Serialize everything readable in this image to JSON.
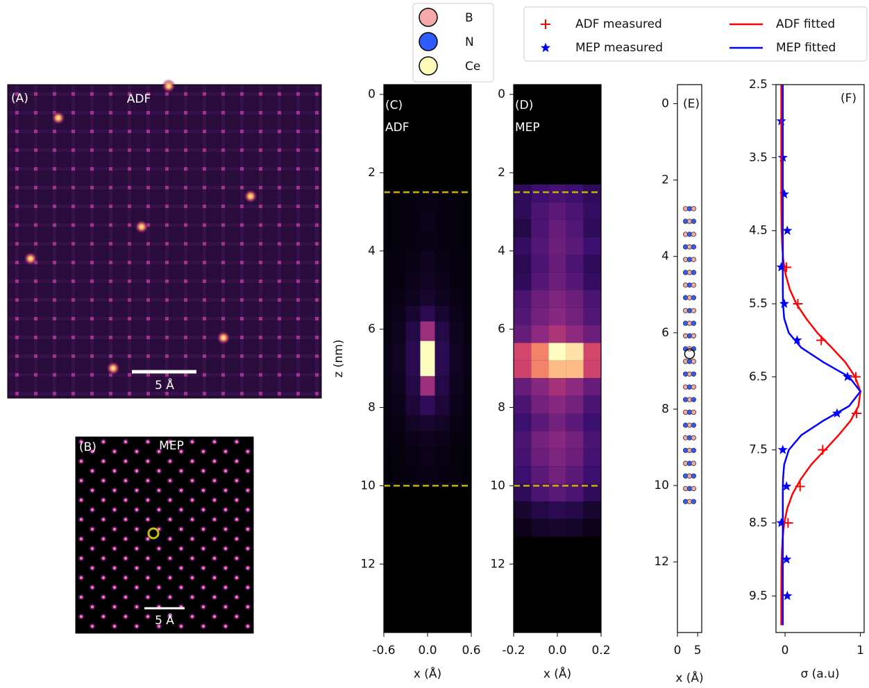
{
  "chart_data": [
    {
      "type": "image",
      "panel_label": "(A)",
      "title": "ADF",
      "scale_label": "5 Å"
    },
    {
      "type": "image",
      "panel_label": "(B)",
      "title": "MEP",
      "scale_label": "5 Å"
    },
    {
      "type": "heatmap",
      "panel_label": "(C)",
      "title": "ADF",
      "ylabel": "z (nm)",
      "xlabel": "x (Å)",
      "xlim": [
        -0.6,
        0.6
      ],
      "xticks": [
        -0.6,
        {
          "value": 0,
          "label": "0.0"
        },
        0.6
      ],
      "ylim": [
        -0.25,
        13.75
      ],
      "y_inverted": true,
      "yticks": [
        0,
        2,
        4,
        6,
        8,
        10,
        12
      ],
      "hlines": [
        2.5,
        10
      ],
      "hline_color": "#c8b400",
      "x_edges": [
        -0.6,
        -0.5,
        -0.3,
        -0.1,
        0.1,
        0.3,
        0.5,
        0.6
      ],
      "z_edges": [
        2.5,
        3.0,
        3.5,
        4.0,
        4.5,
        5.0,
        5.4,
        5.8,
        6.3,
        7.2,
        7.7,
        8.2,
        8.6,
        9.0,
        9.5,
        10.0
      ],
      "values": [
        [
          0.01,
          0.02,
          0.03,
          0.04,
          0.03,
          0.02,
          0.01
        ],
        [
          0.01,
          0.02,
          0.03,
          0.05,
          0.03,
          0.02,
          0.01
        ],
        [
          0.01,
          0.02,
          0.03,
          0.04,
          0.03,
          0.02,
          0.01
        ],
        [
          0.02,
          0.03,
          0.04,
          0.06,
          0.04,
          0.03,
          0.02
        ],
        [
          0.02,
          0.03,
          0.05,
          0.07,
          0.05,
          0.03,
          0.02
        ],
        [
          0.02,
          0.04,
          0.06,
          0.1,
          0.06,
          0.04,
          0.02
        ],
        [
          0.03,
          0.05,
          0.1,
          0.18,
          0.1,
          0.05,
          0.03
        ],
        [
          0.03,
          0.06,
          0.15,
          0.55,
          0.15,
          0.06,
          0.03
        ],
        [
          0.04,
          0.07,
          0.18,
          1.0,
          0.18,
          0.07,
          0.04
        ],
        [
          0.03,
          0.06,
          0.15,
          0.55,
          0.15,
          0.06,
          0.03
        ],
        [
          0.03,
          0.05,
          0.12,
          0.2,
          0.12,
          0.05,
          0.03
        ],
        [
          0.02,
          0.04,
          0.08,
          0.1,
          0.08,
          0.04,
          0.02
        ],
        [
          0.02,
          0.03,
          0.05,
          0.06,
          0.05,
          0.03,
          0.02
        ],
        [
          0.01,
          0.02,
          0.04,
          0.05,
          0.04,
          0.02,
          0.01
        ],
        [
          0.01,
          0.02,
          0.03,
          0.04,
          0.03,
          0.02,
          0.01
        ]
      ]
    },
    {
      "type": "heatmap",
      "panel_label": "(D)",
      "title": "MEP",
      "xlabel": "x (Å)",
      "xlim": [
        -0.2,
        0.2
      ],
      "xticks": [
        -0.2,
        {
          "value": 0,
          "label": "0.0"
        },
        0.2
      ],
      "ylim": [
        -0.25,
        13.75
      ],
      "y_inverted": true,
      "yticks": [
        0,
        2,
        4,
        6,
        8,
        10,
        12
      ],
      "hlines": [
        2.5,
        10
      ],
      "hline_color": "#c8b400",
      "x_edges": [
        -0.2,
        -0.12,
        -0.04,
        0.04,
        0.12,
        0.2
      ],
      "z_edges": [
        2.3,
        2.75,
        3.2,
        3.65,
        4.1,
        4.55,
        5.0,
        5.45,
        5.9,
        6.35,
        6.8,
        7.25,
        7.7,
        8.15,
        8.6,
        9.05,
        9.5,
        9.95,
        10.4,
        10.85,
        11.3
      ],
      "values": [
        [
          0.2,
          0.25,
          0.28,
          0.25,
          0.2
        ],
        [
          0.2,
          0.3,
          0.35,
          0.3,
          0.22
        ],
        [
          0.15,
          0.3,
          0.38,
          0.32,
          0.2
        ],
        [
          0.22,
          0.32,
          0.4,
          0.35,
          0.25
        ],
        [
          0.18,
          0.3,
          0.38,
          0.3,
          0.2
        ],
        [
          0.2,
          0.33,
          0.4,
          0.33,
          0.22
        ],
        [
          0.3,
          0.4,
          0.45,
          0.4,
          0.3
        ],
        [
          0.32,
          0.42,
          0.48,
          0.42,
          0.32
        ],
        [
          0.38,
          0.5,
          0.6,
          0.5,
          0.4
        ],
        [
          0.72,
          0.85,
          1.0,
          0.97,
          0.72
        ],
        [
          0.7,
          0.85,
          0.93,
          0.93,
          0.7
        ],
        [
          0.38,
          0.48,
          0.58,
          0.5,
          0.38
        ],
        [
          0.3,
          0.42,
          0.48,
          0.42,
          0.3
        ],
        [
          0.25,
          0.35,
          0.42,
          0.35,
          0.25
        ],
        [
          0.3,
          0.42,
          0.48,
          0.42,
          0.3
        ],
        [
          0.28,
          0.4,
          0.45,
          0.4,
          0.28
        ],
        [
          0.25,
          0.35,
          0.42,
          0.35,
          0.25
        ],
        [
          0.2,
          0.3,
          0.35,
          0.3,
          0.2
        ],
        [
          0.1,
          0.15,
          0.18,
          0.15,
          0.1
        ],
        [
          0.05,
          0.08,
          0.1,
          0.08,
          0.05
        ]
      ]
    },
    {
      "type": "schematic",
      "panel_label": "(E)",
      "xlabel": "x (Å)",
      "xlim": [
        0,
        6
      ],
      "xticks": [
        0,
        5
      ],
      "ylim": [
        -0.5,
        13.85
      ],
      "y_inverted": true,
      "yticks": [
        0,
        2,
        4,
        6,
        8,
        10,
        12
      ],
      "species": [
        {
          "name": "B",
          "color": "#f5a9a9"
        },
        {
          "name": "N",
          "color": "#2f5cff"
        },
        {
          "name": "Ce",
          "color": "#fffbb8"
        }
      ],
      "atom_x": [
        2,
        3,
        4
      ],
      "atom_z": [
        2.75,
        3.08,
        3.42,
        3.75,
        4.08,
        4.42,
        4.75,
        5.08,
        5.42,
        5.75,
        6.08,
        6.42,
        6.75,
        7.08,
        7.42,
        7.75,
        8.08,
        8.42,
        8.75,
        9.08,
        9.42,
        9.75,
        10.08,
        10.42
      ],
      "ce_x": 3,
      "ce_z": 6.55
    },
    {
      "type": "line",
      "panel_label": "(F)",
      "xlabel": "σ (a.u)",
      "xlim": [
        -0.12,
        1.05
      ],
      "xticks": [
        0,
        1
      ],
      "ylim": [
        2.5,
        10
      ],
      "y_inverted": true,
      "yticks": [
        2.5,
        3.5,
        4.5,
        5.5,
        6.5,
        7.5,
        8.5,
        9.5
      ],
      "series": [
        {
          "name": "ADF measured",
          "color": "#ff0000",
          "marker": "plus",
          "z": [
            5.0,
            5.5,
            6.0,
            6.5,
            7.0,
            7.5,
            8.0,
            8.5
          ],
          "values": [
            0.02,
            0.17,
            0.48,
            0.94,
            0.95,
            0.5,
            0.2,
            0.04
          ]
        },
        {
          "name": "MEP measured",
          "color": "#0000ff",
          "marker": "star",
          "z": [
            3.0,
            3.5,
            4.0,
            4.5,
            5.0,
            5.5,
            6.0,
            6.5,
            7.0,
            7.5,
            8.0,
            8.5,
            9.0,
            9.5
          ],
          "values": [
            -0.05,
            -0.03,
            -0.01,
            0.03,
            -0.05,
            -0.01,
            0.16,
            0.83,
            0.69,
            -0.03,
            0.02,
            -0.05,
            0.02,
            0.03
          ]
        },
        {
          "name": "ADF fitted",
          "color": "#ff0000",
          "marker": "line",
          "z": [
            2.5,
            2.7,
            2.9,
            3.1,
            3.3,
            3.5,
            3.7,
            3.9,
            4.1,
            4.3,
            4.5,
            4.7,
            4.9,
            5.1,
            5.3,
            5.5,
            5.7,
            5.9,
            6.1,
            6.3,
            6.5,
            6.7,
            6.9,
            7.1,
            7.3,
            7.5,
            7.7,
            7.9,
            8.1,
            8.3,
            8.5,
            8.7,
            8.9,
            9.1,
            9.3,
            9.5,
            9.7,
            9.9
          ],
          "values": [
            -0.05,
            -0.05,
            -0.05,
            -0.05,
            -0.05,
            -0.05,
            -0.05,
            -0.05,
            -0.05,
            -0.048,
            -0.045,
            -0.038,
            -0.023,
            0.008,
            0.062,
            0.15,
            0.28,
            0.43,
            0.62,
            0.8,
            0.93,
            1.0,
            0.975,
            0.87,
            0.71,
            0.53,
            0.35,
            0.21,
            0.1,
            0.03,
            -0.01,
            -0.032,
            -0.042,
            -0.047,
            -0.049,
            -0.05,
            -0.05,
            -0.05
          ]
        },
        {
          "name": "MEP fitted",
          "color": "#0000ff",
          "marker": "line",
          "z": [
            2.5,
            2.7,
            2.9,
            3.1,
            3.3,
            3.5,
            3.7,
            3.9,
            4.1,
            4.3,
            4.5,
            4.7,
            4.9,
            5.1,
            5.3,
            5.5,
            5.7,
            5.9,
            6.1,
            6.3,
            6.5,
            6.7,
            6.9,
            7.1,
            7.3,
            7.5,
            7.7,
            7.9,
            8.1,
            8.3,
            8.5,
            8.7,
            8.9,
            9.1,
            9.3,
            9.5,
            9.7,
            9.9
          ],
          "values": [
            -0.03,
            -0.03,
            -0.03,
            -0.03,
            -0.03,
            -0.03,
            -0.03,
            -0.03,
            -0.03,
            -0.03,
            -0.03,
            -0.03,
            -0.03,
            -0.03,
            -0.03,
            -0.027,
            -0.011,
            0.05,
            0.214,
            0.51,
            0.85,
            1.0,
            0.85,
            0.51,
            0.214,
            0.05,
            -0.011,
            -0.027,
            -0.03,
            -0.03,
            -0.03,
            -0.03,
            -0.03,
            -0.03,
            -0.03,
            -0.03,
            -0.03,
            -0.03
          ]
        }
      ]
    }
  ]
}
